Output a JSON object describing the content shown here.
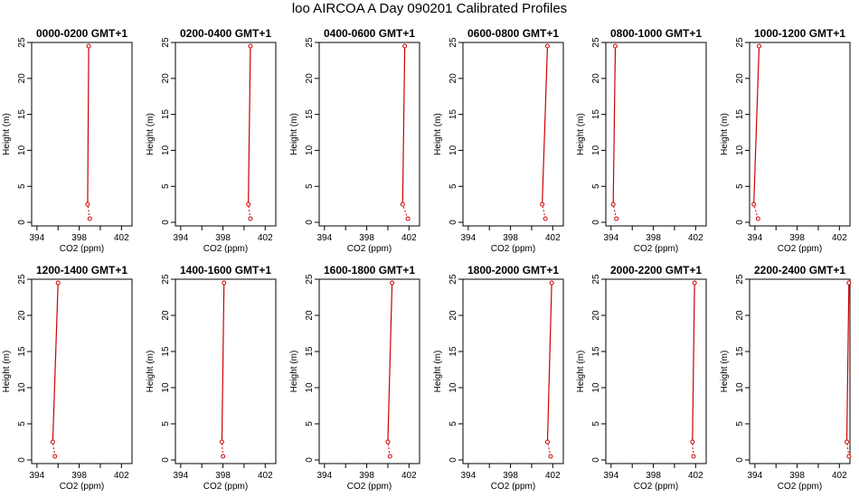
{
  "title": "loo AIRCOA A  Day 090201  Calibrated Profiles",
  "chart_data": {
    "type": "line",
    "xlabel": "CO2 (ppm)",
    "ylabel": "Height (m)",
    "xlim": [
      393.5,
      403
    ],
    "ylim": [
      -0.5,
      25
    ],
    "x_ticks": [
      "394",
      "398",
      "402"
    ],
    "y_ticks": [
      "0",
      "5",
      "10",
      "15",
      "20",
      "25"
    ],
    "line_color": "#cc0000",
    "heights": [
      0.5,
      2.5,
      24.5
    ],
    "panels": [
      {
        "title": "0000-0200 GMT+1",
        "co2": [
          399.0,
          398.8,
          398.9
        ]
      },
      {
        "title": "0200-0400 GMT+1",
        "co2": [
          400.6,
          400.4,
          400.6
        ]
      },
      {
        "title": "0400-0600 GMT+1",
        "co2": [
          401.9,
          401.4,
          401.6
        ]
      },
      {
        "title": "0600-0800 GMT+1",
        "co2": [
          401.3,
          401.0,
          401.5
        ]
      },
      {
        "title": "0800-1000 GMT+1",
        "co2": [
          394.5,
          394.2,
          394.4
        ]
      },
      {
        "title": "1000-1200 GMT+1",
        "co2": [
          394.3,
          393.9,
          394.4
        ]
      },
      {
        "title": "1200-1400 GMT+1",
        "co2": [
          395.7,
          395.5,
          396.0
        ]
      },
      {
        "title": "1400-1600 GMT+1",
        "co2": [
          398.0,
          397.9,
          398.1
        ]
      },
      {
        "title": "1600-1800 GMT+1",
        "co2": [
          400.2,
          400.0,
          400.4
        ]
      },
      {
        "title": "1800-2000 GMT+1",
        "co2": [
          401.8,
          401.5,
          401.9
        ]
      },
      {
        "title": "2000-2200 GMT+1",
        "co2": [
          401.8,
          401.7,
          401.9
        ]
      },
      {
        "title": "2200-2400 GMT+1",
        "co2": [
          402.9,
          402.7,
          402.9
        ]
      }
    ]
  }
}
